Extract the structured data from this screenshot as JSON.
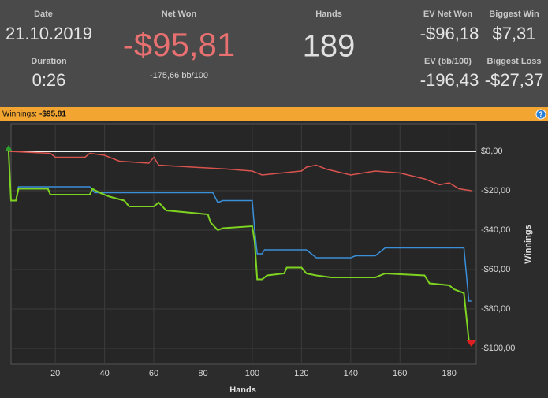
{
  "header": {
    "date": {
      "label": "Date",
      "value": "21.10.2019"
    },
    "duration": {
      "label": "Duration",
      "value": "0:26"
    },
    "net_won": {
      "label": "Net Won",
      "value": "-$95,81",
      "sub": "-175,66 bb/100"
    },
    "hands": {
      "label": "Hands",
      "value": "189"
    },
    "ev_net_won": {
      "label": "EV Net Won",
      "value": "-$96,18"
    },
    "biggest_win": {
      "label": "Biggest Win",
      "value": "$7,31"
    },
    "ev_bb": {
      "label": "EV (bb/100)",
      "value": "-196,43"
    },
    "biggest_loss": {
      "label": "Biggest Loss",
      "value": "-$27,37"
    }
  },
  "bar": {
    "label": "Winnings:",
    "value": "-$95,81"
  },
  "chart_data": {
    "type": "line",
    "x_label": "Hands",
    "y_label": "Winnings",
    "xlim": [
      2,
      191
    ],
    "ylim": [
      -108,
      14
    ],
    "xticks": [
      20,
      40,
      60,
      80,
      100,
      120,
      140,
      160,
      180
    ],
    "yticks": [
      {
        "value": 0,
        "label": "$0,00"
      },
      {
        "value": -20,
        "label": "-$20,00"
      },
      {
        "value": -40,
        "label": "-$40,00"
      },
      {
        "value": -60,
        "label": "-$60,00"
      },
      {
        "value": -80,
        "label": "-$80,00"
      },
      {
        "value": -100,
        "label": "-$100,00"
      }
    ],
    "grid": true,
    "series": [
      {
        "color": "#d9534f",
        "x": [
          1,
          18,
          20,
          32,
          34,
          40,
          46,
          58,
          60,
          62,
          90,
          100,
          104,
          120,
          122,
          126,
          130,
          140,
          150,
          160,
          170,
          176,
          180,
          184,
          189
        ],
        "values": [
          0,
          -1,
          -3,
          -3,
          -1,
          -2,
          -5,
          -6,
          -3,
          -7,
          -9,
          -10,
          -12,
          -10,
          -8,
          -7,
          -9,
          -12,
          -10,
          -11,
          -14,
          -17,
          -16,
          -19,
          -20
        ]
      },
      {
        "color": "#3a8fd9",
        "x": [
          1,
          2,
          4,
          5,
          34,
          36,
          84,
          86,
          88,
          100,
          101,
          102,
          104,
          105,
          122,
          126,
          140,
          142,
          150,
          154,
          186,
          188,
          189
        ],
        "values": [
          0,
          -25,
          -25,
          -18,
          -18,
          -21,
          -21,
          -26,
          -25,
          -25,
          -40,
          -52,
          -52,
          -50,
          -50,
          -54,
          -54,
          -53,
          -53,
          -49,
          -49,
          -76,
          -76
        ]
      },
      {
        "color": "#7ed321",
        "x": [
          1,
          2,
          4,
          5,
          17,
          18,
          34,
          35,
          38,
          42,
          48,
          50,
          60,
          62,
          65,
          82,
          83,
          86,
          88,
          100,
          101,
          102,
          104,
          106,
          113,
          114,
          120,
          122,
          126,
          132,
          150,
          154,
          170,
          172,
          180,
          182,
          186,
          188,
          189
        ],
        "values": [
          0,
          -25,
          -25,
          -19,
          -19,
          -22,
          -22,
          -19,
          -21,
          -23,
          -25,
          -28,
          -28,
          -26,
          -30,
          -32,
          -36,
          -40,
          -39,
          -38,
          -46,
          -65,
          -65,
          -63,
          -62,
          -59,
          -59,
          -62,
          -63,
          -64,
          -64,
          -62,
          -63,
          -67,
          -68,
          -70,
          -72,
          -96,
          -96
        ]
      }
    ]
  }
}
